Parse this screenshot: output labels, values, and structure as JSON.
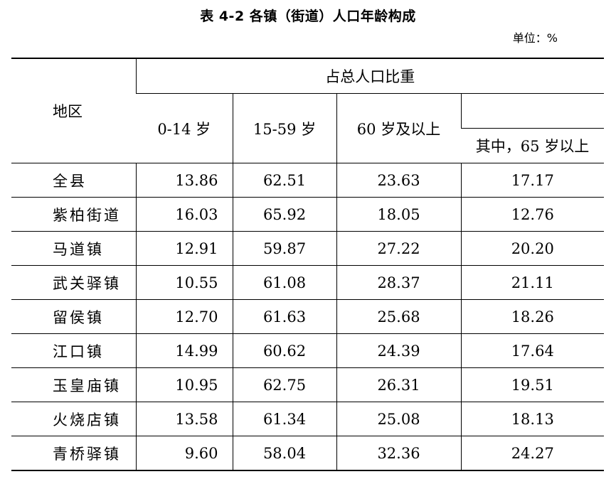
{
  "title": "表 4-2   各镇（街道）人口年龄构成",
  "unit": "单位：%",
  "table": {
    "header": {
      "region": "地区",
      "group": "占总人口比重",
      "cols": [
        "0-14 岁",
        "15-59 岁",
        "60 岁及以上"
      ],
      "sub": "其中，65 岁以上"
    },
    "rows": [
      {
        "name": "全县",
        "v1": "13.86",
        "v2": "62.51",
        "v3": "23.63",
        "v4": "17.17"
      },
      {
        "name": "紫柏街道",
        "v1": "16.03",
        "v2": "65.92",
        "v3": "18.05",
        "v4": "12.76"
      },
      {
        "name": "马道镇",
        "v1": "12.91",
        "v2": "59.87",
        "v3": "27.22",
        "v4": "20.20"
      },
      {
        "name": "武关驿镇",
        "v1": "10.55",
        "v2": "61.08",
        "v3": "28.37",
        "v4": "21.11"
      },
      {
        "name": "留侯镇",
        "v1": "12.70",
        "v2": "61.63",
        "v3": "25.68",
        "v4": "18.26"
      },
      {
        "name": "江口镇",
        "v1": "14.99",
        "v2": "60.62",
        "v3": "24.39",
        "v4": "17.64"
      },
      {
        "name": "玉皇庙镇",
        "v1": "10.95",
        "v2": "62.75",
        "v3": "26.31",
        "v4": "19.51"
      },
      {
        "name": "火烧店镇",
        "v1": "13.58",
        "v2": "61.34",
        "v3": "25.08",
        "v4": "18.13"
      },
      {
        "name": "青桥驿镇",
        "v1": "9.60",
        "v2": "58.04",
        "v3": "32.36",
        "v4": "24.27"
      }
    ]
  }
}
